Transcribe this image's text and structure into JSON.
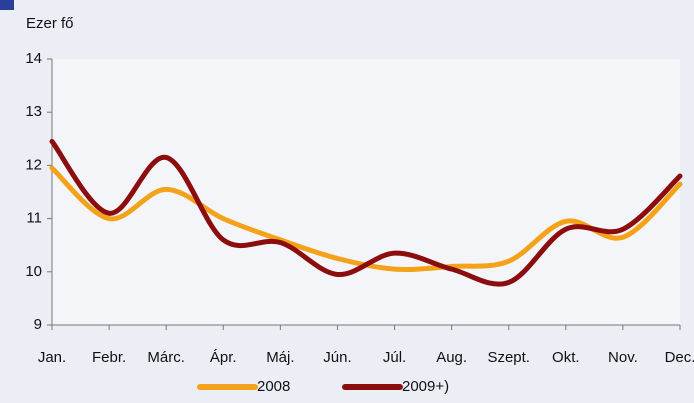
{
  "chart_data": {
    "type": "line",
    "y_label": "Ezer fő",
    "categories": [
      "Jan.",
      "Febr.",
      "Márc.",
      "Ápr.",
      "Máj.",
      "Jún.",
      "Júl.",
      "Aug.",
      "Szept.",
      "Okt.",
      "Nov.",
      "Dec."
    ],
    "series": [
      {
        "name": "2008",
        "color": "#f5a21b",
        "values": [
          11.95,
          11.0,
          11.55,
          11.0,
          10.6,
          10.25,
          10.05,
          10.1,
          10.2,
          10.95,
          10.65,
          11.65
        ]
      },
      {
        "name": "2009+)",
        "color": "#8b0d0d",
        "values": [
          12.45,
          11.1,
          12.15,
          10.6,
          10.55,
          9.95,
          10.35,
          10.05,
          9.8,
          10.8,
          10.8,
          11.8
        ]
      }
    ],
    "ylim": [
      9,
      14
    ],
    "yticks": [
      9,
      10,
      11,
      12,
      13,
      14
    ],
    "grid": false,
    "legend": "bottom"
  }
}
